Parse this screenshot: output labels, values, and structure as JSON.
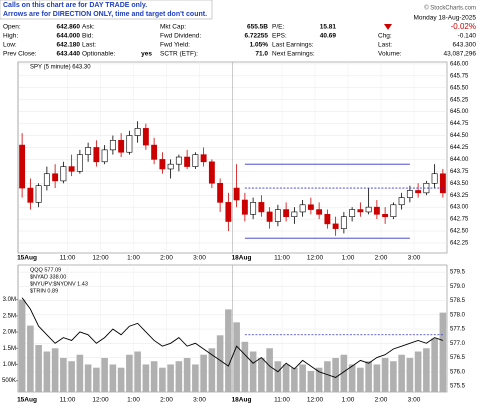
{
  "note": [
    "Calls on this chart are for DAY TRADE only.",
    "Arrows are for DIRECTION ONLY, time and target don't count."
  ],
  "quote": {
    "rows": [
      [
        {
          "label": "Open:",
          "value": "642.860"
        },
        {
          "label": "Ask:"
        },
        {
          "label": "Mkt Cap:",
          "value": "655.5B"
        },
        {
          "label": "P/E:",
          "value": "15.81"
        }
      ],
      [
        {
          "label": "High:",
          "value": "644.000"
        },
        {
          "label": "Bid:"
        },
        {
          "label": "Fwd Dividend:",
          "value": "6.72255"
        },
        {
          "label": "EPS:",
          "value": "40.69"
        }
      ],
      [
        {
          "label": "Low:",
          "value": "642.180"
        },
        {
          "label": "Last:"
        },
        {
          "label": "Fwd Yield:",
          "value": "1.05%"
        },
        {
          "label": "Last Earnings:"
        }
      ],
      [
        {
          "label": "Prev Close:",
          "value": "643.440"
        },
        {
          "label": "Optionable:",
          "value": "yes"
        },
        {
          "label": "SCTR (ETF):",
          "value": "71.0"
        },
        {
          "label": "Next Earnings:"
        }
      ]
    ],
    "date": "Monday 18-Aug-2025",
    "change_pct": "-0.02%",
    "chg_label": "Chg:",
    "chg": "-0.140",
    "last_label": "Last:",
    "last": "643.300",
    "volume_label": "Volume:",
    "volume": "43,087,296",
    "credit": "© StockCharts.com"
  },
  "chart_data": [
    {
      "type": "candlestick",
      "legend": "SPY (5 minute) 643.30",
      "up_color": "#000000",
      "down_color": "#cc0000",
      "categories": [
        "15Aug",
        null,
        null,
        null,
        null,
        null,
        "11:00",
        null,
        null,
        null,
        "12:00",
        null,
        null,
        null,
        "1:00",
        null,
        null,
        null,
        "2:00",
        null,
        null,
        null,
        "3:00",
        null,
        null,
        null,
        "18Aug",
        null,
        null,
        null,
        null,
        null,
        "11:00",
        null,
        null,
        null,
        "12:00",
        null,
        null,
        null,
        "1:00",
        null,
        null,
        null,
        "2:00",
        null,
        null,
        null,
        "3:00",
        null,
        null,
        null
      ],
      "ohlc": [
        [
          644.3,
          644.55,
          643.2,
          643.4
        ],
        [
          643.4,
          643.6,
          642.95,
          643.1
        ],
        [
          643.1,
          643.5,
          643.0,
          643.45
        ],
        [
          643.45,
          643.85,
          643.35,
          643.7
        ],
        [
          643.7,
          643.9,
          643.4,
          643.55
        ],
        [
          643.55,
          643.95,
          643.5,
          643.85
        ],
        [
          643.85,
          644.1,
          643.65,
          643.75
        ],
        [
          643.75,
          644.2,
          643.7,
          644.1
        ],
        [
          644.1,
          644.35,
          643.95,
          644.25
        ],
        [
          644.25,
          644.4,
          643.85,
          643.95
        ],
        [
          643.95,
          644.3,
          643.9,
          644.2
        ],
        [
          644.2,
          644.5,
          644.1,
          644.4
        ],
        [
          644.4,
          644.55,
          644.05,
          644.15
        ],
        [
          644.15,
          644.6,
          644.1,
          644.5
        ],
        [
          644.5,
          644.8,
          644.35,
          644.65
        ],
        [
          644.65,
          644.75,
          644.2,
          644.3
        ],
        [
          644.3,
          644.45,
          643.9,
          644.0
        ],
        [
          644.0,
          644.15,
          643.7,
          643.8
        ],
        [
          643.8,
          644.0,
          643.6,
          643.9
        ],
        [
          643.9,
          644.1,
          643.75,
          644.05
        ],
        [
          644.05,
          644.2,
          643.8,
          643.85
        ],
        [
          643.85,
          644.15,
          643.8,
          644.1
        ],
        [
          644.1,
          644.25,
          643.85,
          643.95
        ],
        [
          643.95,
          644.0,
          643.4,
          643.5
        ],
        [
          643.5,
          643.6,
          642.9,
          643.1
        ],
        [
          643.1,
          643.3,
          642.5,
          642.7
        ],
        [
          643.4,
          643.9,
          643.0,
          643.15
        ],
        [
          643.15,
          643.3,
          642.7,
          642.85
        ],
        [
          642.85,
          643.2,
          642.75,
          643.1
        ],
        [
          643.1,
          643.25,
          642.8,
          642.9
        ],
        [
          642.9,
          643.0,
          642.55,
          642.7
        ],
        [
          642.7,
          643.05,
          642.6,
          642.95
        ],
        [
          642.95,
          643.1,
          642.7,
          642.8
        ],
        [
          642.8,
          643.0,
          642.65,
          642.9
        ],
        [
          642.9,
          643.15,
          642.8,
          643.05
        ],
        [
          643.05,
          643.2,
          642.85,
          642.95
        ],
        [
          642.95,
          643.1,
          642.75,
          642.85
        ],
        [
          642.85,
          642.95,
          642.55,
          642.65
        ],
        [
          642.65,
          642.8,
          642.4,
          642.55
        ],
        [
          642.55,
          642.9,
          642.45,
          642.8
        ],
        [
          642.8,
          643.0,
          642.7,
          642.95
        ],
        [
          642.95,
          643.1,
          642.8,
          642.9
        ],
        [
          642.9,
          643.4,
          642.85,
          643.0
        ],
        [
          643.0,
          643.15,
          642.75,
          642.85
        ],
        [
          642.85,
          643.0,
          642.65,
          642.8
        ],
        [
          642.8,
          643.1,
          642.75,
          643.05
        ],
        [
          643.05,
          643.3,
          642.95,
          643.2
        ],
        [
          643.2,
          643.45,
          643.1,
          643.35
        ],
        [
          643.35,
          643.5,
          643.2,
          643.3
        ],
        [
          643.3,
          643.55,
          643.25,
          643.5
        ],
        [
          643.5,
          643.9,
          643.4,
          643.7
        ],
        [
          643.7,
          643.8,
          643.2,
          643.3
        ]
      ],
      "levels": [
        {
          "value": 643.9,
          "start": 27,
          "end": 47,
          "dashed": false,
          "color": "#3333cc"
        },
        {
          "value": 643.4,
          "start": 27,
          "end": 51,
          "dashed": true,
          "color": "#3333cc"
        },
        {
          "value": 642.35,
          "start": 27,
          "end": 47,
          "dashed": false,
          "color": "#3333cc"
        }
      ],
      "ylim": [
        642.04,
        646.04
      ],
      "yticks": [
        {
          "value": 646,
          "label": "646.00"
        },
        645.75,
        {
          "value": 645.5,
          "label": "645.50"
        },
        645.25,
        {
          "value": 645,
          "label": "645.00"
        },
        644.75,
        {
          "value": 644.5,
          "label": "644.50"
        },
        644.25,
        {
          "value": 644,
          "label": "644.00"
        },
        643.75,
        {
          "value": 643.5,
          "label": "643.50"
        },
        643.25,
        {
          "value": 643,
          "label": "643.00"
        },
        642.75,
        {
          "value": 642.5,
          "label": "642.50"
        },
        642.25
      ]
    },
    {
      "type": "line_volume",
      "legend": [
        "QQQ 577.09",
        "$NYAD 338.00",
        "$NYUPV:$NYDNV 1.43",
        "$TRIN 0.89"
      ],
      "color": "#000000",
      "volume_color": "#b0b0b0",
      "categories": [
        "15Aug",
        null,
        null,
        null,
        null,
        null,
        "11:00",
        null,
        null,
        null,
        "12:00",
        null,
        null,
        null,
        "1:00",
        null,
        null,
        null,
        "2:00",
        null,
        null,
        null,
        "3:00",
        null,
        null,
        null,
        "18Aug",
        null,
        null,
        null,
        null,
        null,
        "11:00",
        null,
        null,
        null,
        "12:00",
        null,
        null,
        null,
        "1:00",
        null,
        null,
        null,
        "2:00",
        null,
        null,
        null,
        "3:00",
        null,
        null,
        null
      ],
      "values": [
        578.6,
        578.2,
        577.6,
        577.3,
        577.0,
        577.2,
        577.1,
        577.4,
        577.3,
        577.0,
        577.2,
        577.5,
        577.3,
        577.6,
        577.7,
        577.4,
        577.1,
        576.9,
        577.0,
        577.2,
        576.9,
        577.0,
        576.8,
        576.6,
        576.4,
        576.2,
        576.9,
        576.6,
        576.3,
        576.5,
        576.2,
        576.0,
        576.3,
        576.1,
        576.4,
        576.2,
        576.0,
        575.9,
        575.8,
        576.0,
        576.2,
        576.4,
        576.3,
        576.5,
        576.6,
        576.8,
        576.9,
        577.0,
        577.1,
        577.0,
        577.2,
        577.1
      ],
      "volume": [
        3000000,
        2200000,
        1600000,
        1400000,
        1500000,
        1200000,
        1100000,
        1300000,
        1000000,
        900000,
        1200000,
        1000000,
        900000,
        1300000,
        1400000,
        1000000,
        1100000,
        900000,
        1000000,
        1100000,
        1200000,
        1000000,
        1300000,
        1500000,
        1900000,
        2700000,
        2300000,
        1700000,
        1400000,
        1200000,
        1500000,
        1100000,
        1000000,
        900000,
        1000000,
        800000,
        900000,
        1100000,
        1200000,
        1300000,
        1000000,
        900000,
        1100000,
        1000000,
        1200000,
        1100000,
        1300000,
        1200000,
        1400000,
        1500000,
        1800000,
        2600000
      ],
      "levels": [
        {
          "value": 577.3,
          "start": 27,
          "end": 51,
          "dashed": true,
          "color": "#3333cc"
        }
      ],
      "ylim": [
        575.29,
        579.75
      ],
      "yticks": [
        579.5,
        {
          "value": 579,
          "label": "579.0"
        },
        578.5,
        {
          "value": 578,
          "label": "578.0"
        },
        577.5,
        {
          "value": 577,
          "label": "577.0"
        },
        576.5,
        {
          "value": 576,
          "label": "576.0"
        },
        575.5
      ],
      "vlim": [
        150000,
        4070000
      ],
      "vticks": [
        {
          "value": 3000000,
          "label": "3.0M"
        },
        {
          "value": 2500000,
          "label": "2.5M"
        },
        {
          "value": 2000000,
          "label": "2.0M"
        },
        {
          "value": 1500000,
          "label": "1.5M"
        },
        {
          "value": 1000000,
          "label": "1.0M"
        },
        {
          "value": 500000,
          "label": "500K"
        }
      ]
    }
  ]
}
